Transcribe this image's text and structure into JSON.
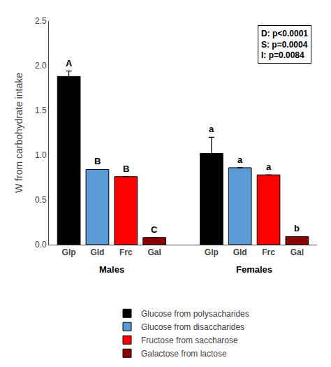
{
  "chart_data": {
    "type": "bar",
    "ylabel": "W from carbohydrate intake",
    "categories": [
      "Males",
      "Females"
    ],
    "series": [
      {
        "name": "Glucose from polysacharides",
        "short_name": "Glp",
        "color": "#000000",
        "values": [
          1.88,
          1.02
        ],
        "errors": [
          0.06,
          0.18
        ],
        "bar_labels": [
          "A",
          "a"
        ]
      },
      {
        "name": "Glucose from disaccharides",
        "short_name": "Gld",
        "color": "#5B9BD5",
        "values": [
          0.84,
          0.86
        ],
        "errors": [
          0.0,
          0.0
        ],
        "bar_labels": [
          "B",
          "a"
        ]
      },
      {
        "name": "Fructose from saccharose",
        "short_name": "Frc",
        "color": "#FF0000",
        "values": [
          0.76,
          0.78
        ],
        "errors": [
          0.0,
          0.0
        ],
        "bar_labels": [
          "B",
          "a"
        ]
      },
      {
        "name": "Galactose from lactose",
        "short_name": "Gal",
        "color": "#8B0000",
        "values": [
          0.08,
          0.09
        ],
        "errors": [
          0.0,
          0.0
        ],
        "bar_labels": [
          "C",
          "b"
        ]
      }
    ],
    "annotation": "D: p<0.0001\nS: p=0.0004\nI: p=0.0084",
    "ylim": [
      0,
      2.5
    ],
    "yticks": [
      {
        "value": 0,
        "label": "0.0"
      },
      0.5,
      {
        "value": 1,
        "label": "1.0"
      },
      1.5,
      {
        "value": 2,
        "label": "2.0"
      },
      2.5
    ],
    "grid": false,
    "legend": "bottom"
  }
}
